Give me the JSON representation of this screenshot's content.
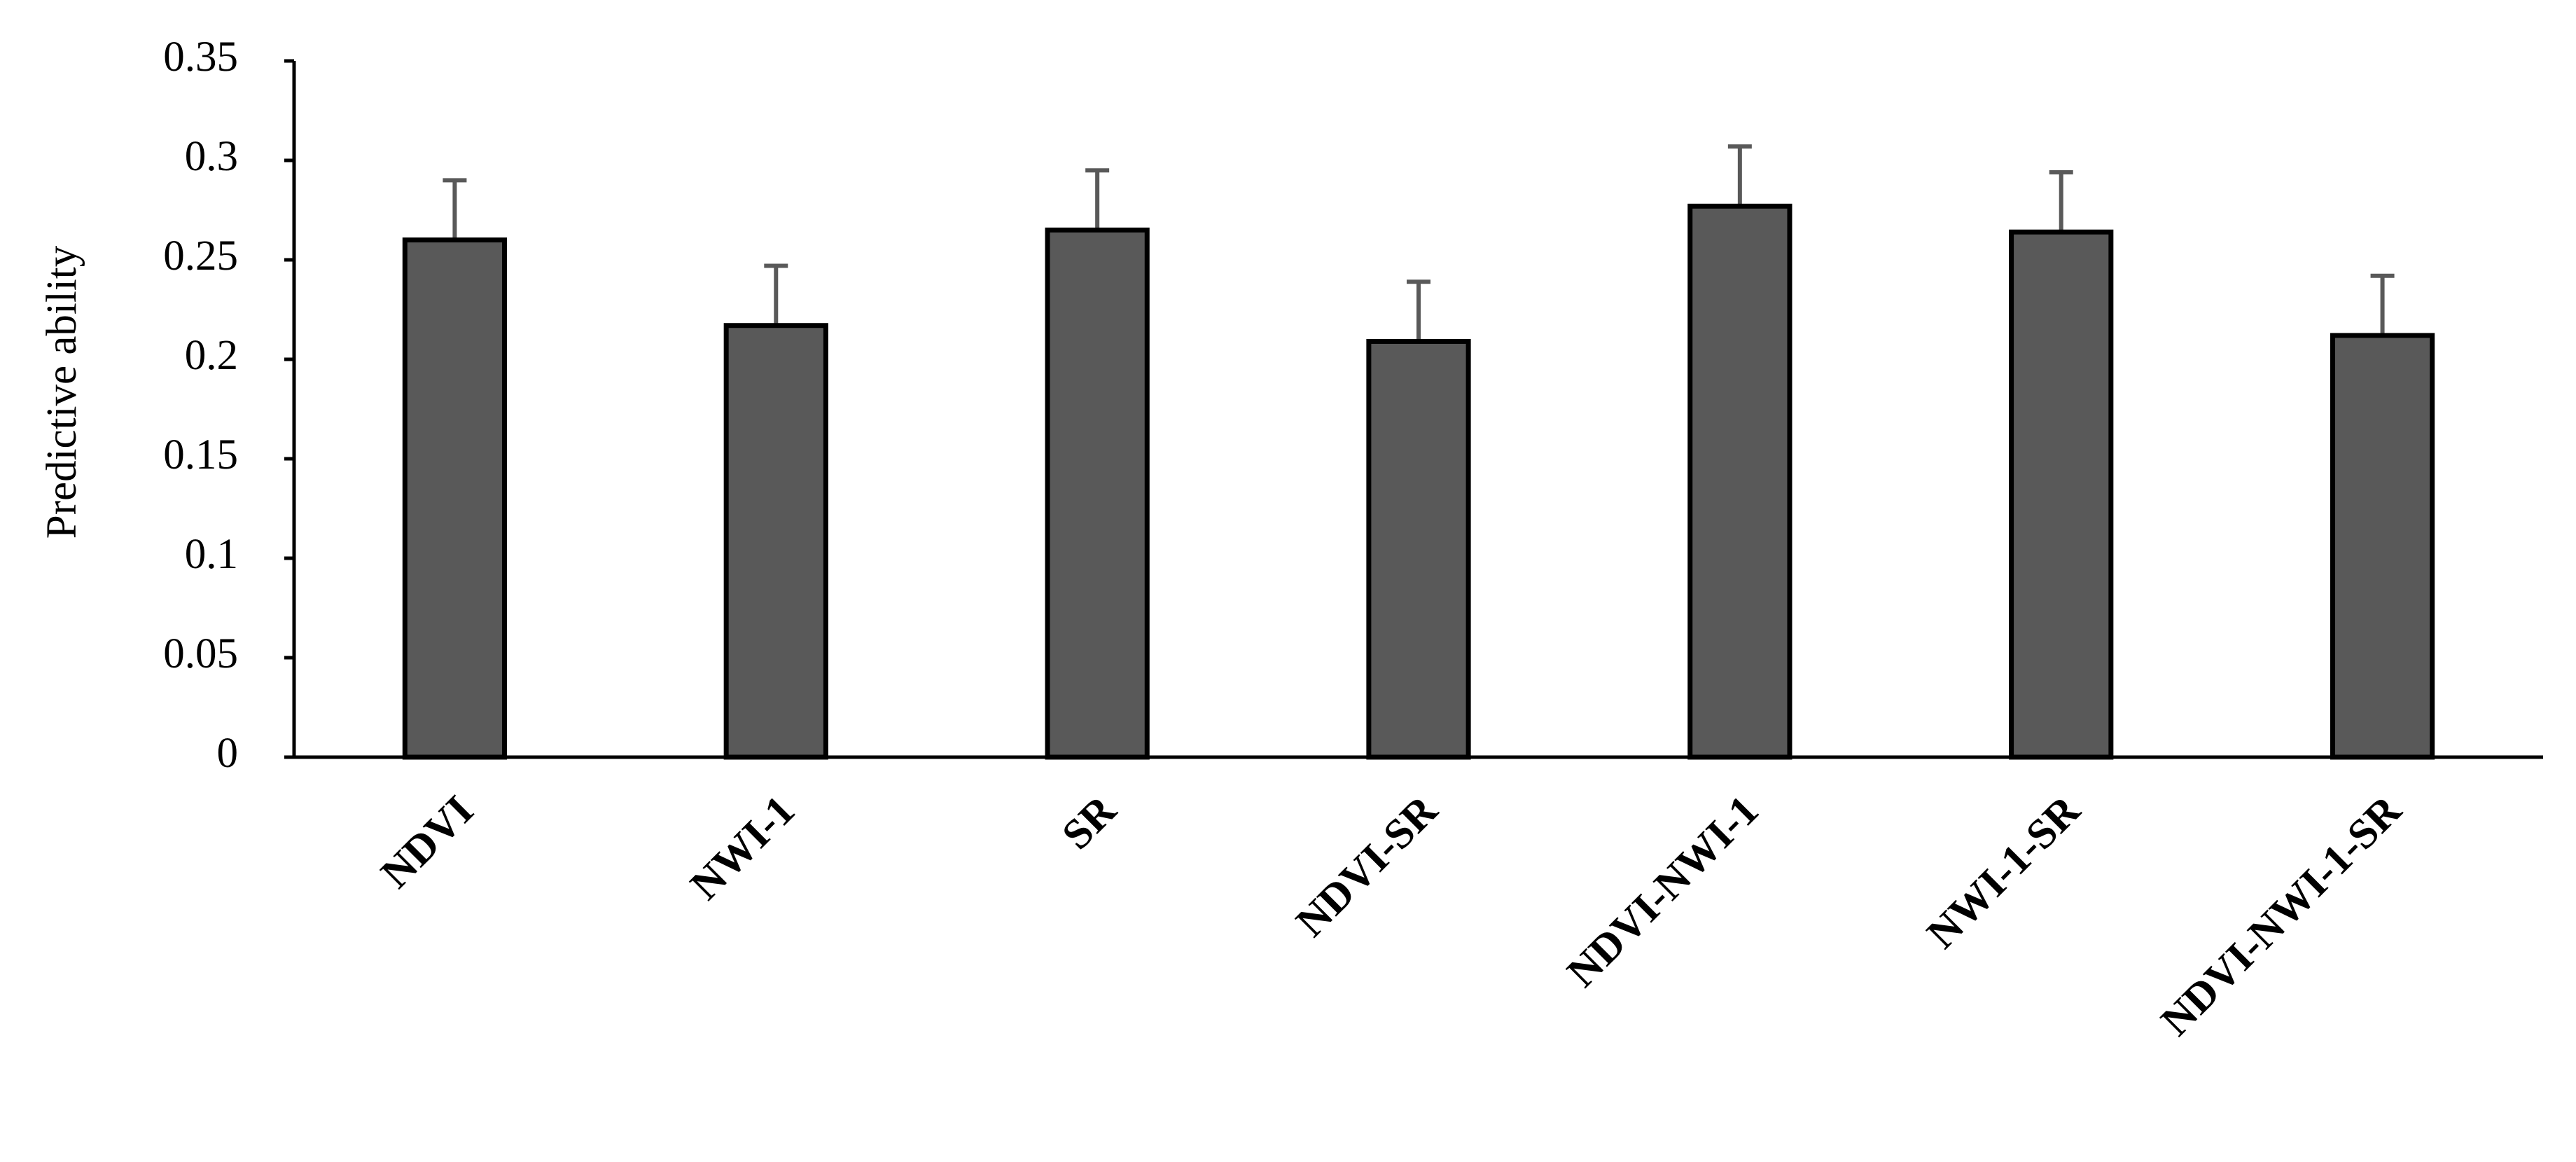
{
  "chart_data": {
    "type": "bar",
    "y_label": "Predictive ability",
    "categories": [
      "NDVI",
      "NWI-1",
      "SR",
      "NDVI-SR",
      "NDVI-NWI-1",
      "NWI-1-SR",
      "NDVI-NWI-1-SR"
    ],
    "values": [
      0.26,
      0.217,
      0.265,
      0.209,
      0.277,
      0.264,
      0.212
    ],
    "errors": [
      0.03,
      0.03,
      0.03,
      0.03,
      0.03,
      0.03,
      0.03
    ],
    "color": "#595959",
    "error_color": "#595959",
    "ylim": [
      0,
      0.35
    ],
    "yticks": [
      0,
      0.05,
      0.1,
      0.15,
      0.2,
      0.25,
      0.3,
      0.35
    ],
    "grid": false
  }
}
